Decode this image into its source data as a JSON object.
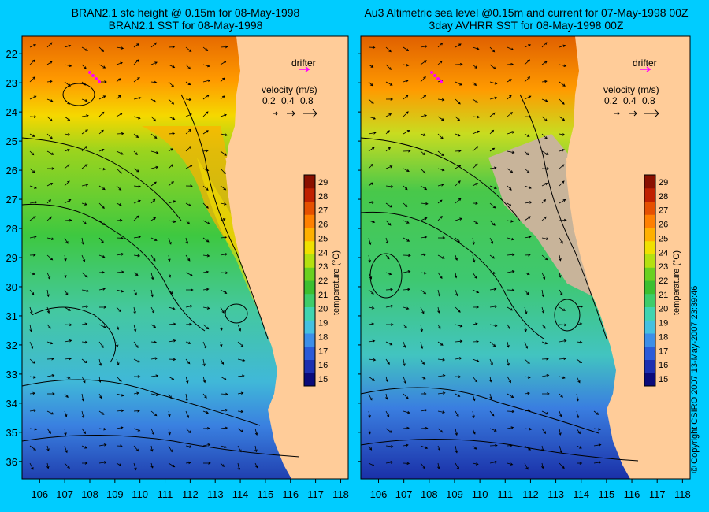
{
  "left_panel": {
    "title_line1": "BRAN2.1 sfc height @ 0.15m for 08-May-1998",
    "title_line2": "BRAN2.1 SST for 08-May-1998"
  },
  "right_panel": {
    "title_line1": "Au3 Altimetric sea level  @0.15m and current for 07-May-1998 00Z",
    "title_line2": "3day AVHRR SST for 08-May-1998 00Z"
  },
  "drifter_label": "drifter",
  "velocity_legend": {
    "title": "velocity (m/s)",
    "values": [
      "0.2",
      "0.4",
      "0.8"
    ]
  },
  "colorbar": {
    "label": "temperature (°C)",
    "min": 15,
    "max": 29,
    "ticks": [
      "29",
      "28",
      "27",
      "26",
      "25",
      "24",
      "23",
      "22",
      "21",
      "20",
      "19",
      "18",
      "17",
      "16",
      "15"
    ],
    "colors": [
      "#0a0a7a",
      "#1c2fb0",
      "#2a5ad8",
      "#3c8ee8",
      "#44c0e0",
      "#40d4b0",
      "#3ecc6a",
      "#3cbf30",
      "#6ad020",
      "#b4e010",
      "#f0e000",
      "#ffb000",
      "#ff8000",
      "#e65000",
      "#c02000",
      "#8a1000"
    ]
  },
  "x_axis": {
    "ticks": [
      "106",
      "107",
      "108",
      "109",
      "110",
      "111",
      "112",
      "113",
      "114",
      "115",
      "116",
      "117",
      "118"
    ]
  },
  "y_axis": {
    "ticks": [
      "22",
      "23",
      "24",
      "25",
      "26",
      "27",
      "28",
      "29",
      "30",
      "31",
      "32",
      "33",
      "34",
      "35",
      "36"
    ]
  },
  "land_color": "#ffcc99",
  "cloud_color": "#c8b49a",
  "copyright": "© Copyright CSIRO 2007   13-May-2007 23:39:46"
}
